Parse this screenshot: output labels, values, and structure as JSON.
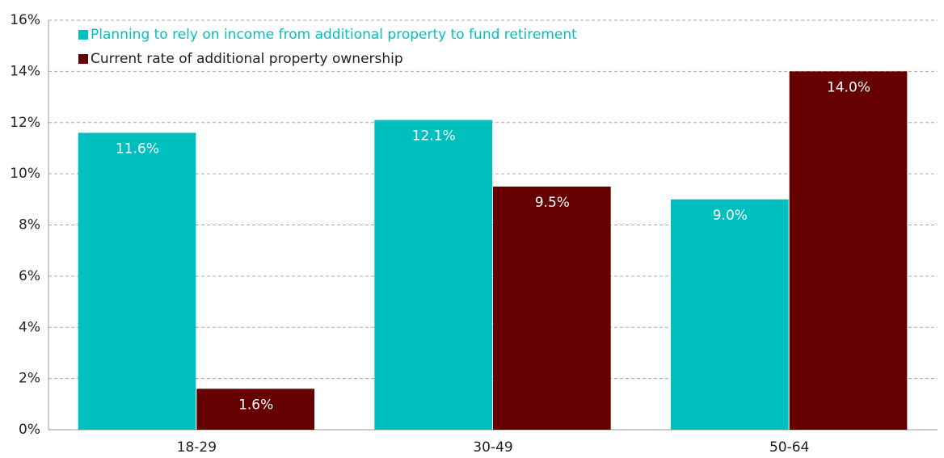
{
  "chart_data": {
    "type": "bar",
    "categories": [
      "18-29",
      "30-49",
      "50-64"
    ],
    "series": [
      {
        "name": "Planning to rely on income from additional property to fund retirement",
        "color": "#00bfbf",
        "values": [
          11.6,
          12.1,
          9.0
        ],
        "value_labels": [
          "11.6%",
          "12.1%",
          "9.0%"
        ]
      },
      {
        "name": "Current rate of additional property ownership",
        "color": "#660000",
        "values": [
          1.6,
          9.5,
          14.0
        ],
        "value_labels": [
          "1.6%",
          "9.5%",
          "14.0%"
        ]
      }
    ],
    "ylim": [
      0,
      16
    ],
    "yticks": [
      {
        "value": 0,
        "label": "0%"
      },
      {
        "value": 2,
        "label": "2%"
      },
      {
        "value": 4,
        "label": "4%"
      },
      {
        "value": 6,
        "label": "6%"
      },
      {
        "value": 8,
        "label": "8%"
      },
      {
        "value": 10,
        "label": "10%"
      },
      {
        "value": 12,
        "label": "12%"
      },
      {
        "value": 14,
        "label": "14%"
      },
      {
        "value": 16,
        "label": "16%"
      }
    ],
    "grid": true,
    "legend": "top-left"
  }
}
